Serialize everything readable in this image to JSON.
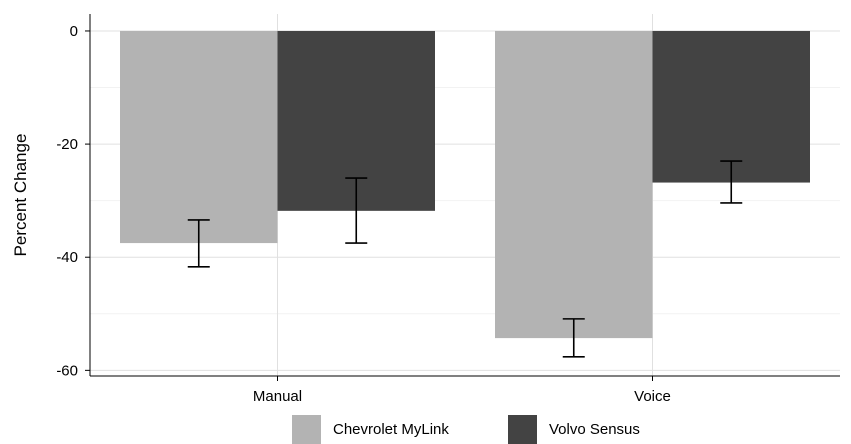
{
  "chart_data": {
    "type": "bar",
    "categories": [
      "Manual",
      "Voice"
    ],
    "series": [
      {
        "name": "Chevrolet MyLink",
        "color": "#b3b3b3",
        "values": [
          -37.5,
          -54.3
        ],
        "error_low": [
          -41.7,
          -57.6
        ],
        "error_high": [
          -33.4,
          -50.9
        ]
      },
      {
        "name": "Volvo Sensus",
        "color": "#434343",
        "values": [
          -31.8,
          -26.8
        ],
        "error_low": [
          -37.5,
          -30.4
        ],
        "error_high": [
          -26.0,
          -23.0
        ]
      }
    ],
    "title": "",
    "xlabel": "",
    "ylabel": "Percent Change",
    "ylim": [
      -61,
      3
    ],
    "yticks": [
      0,
      -20,
      -40,
      -60
    ],
    "ytick_labels": [
      "0",
      "-20",
      "-40",
      "-60"
    ],
    "grid": true,
    "legend_position": "bottom"
  }
}
